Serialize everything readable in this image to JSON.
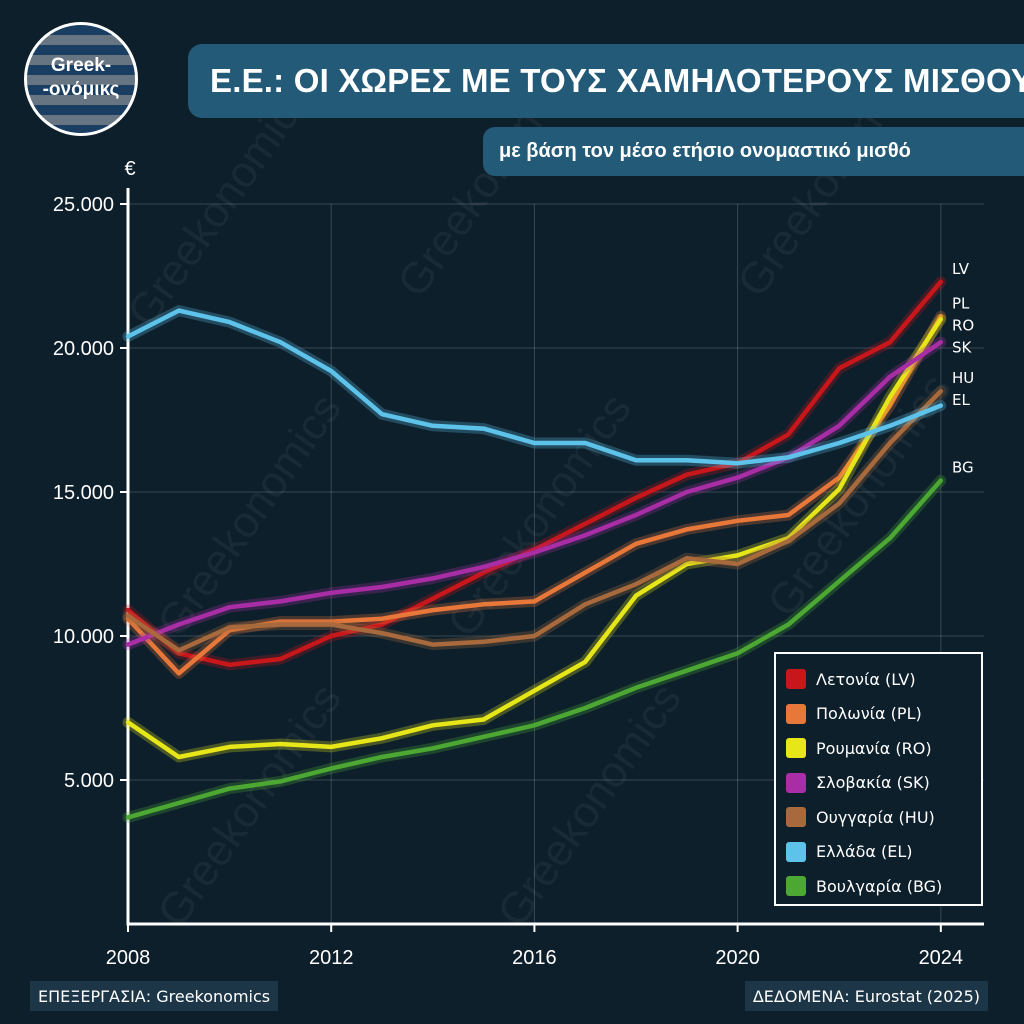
{
  "header": {
    "logo_line1": "Greek-",
    "logo_line2": "-ονόμικς",
    "title": "Ε.Ε.: ΟΙ ΧΩΡΕΣ ΜΕ ΤΟΥΣ ΧΑΜΗΛΟΤΕΡΟΥΣ ΜΙΣΘΟΥΣ",
    "subtitle": "με βάση τον μέσο ετήσιο ονομαστικό μισθό"
  },
  "footer": {
    "left": "ΕΠΕΞΕΡΓΑΣΙΑ: Greekonomics",
    "right": "ΔΕΔΟΜΕΝΑ: Eurostat (2025)"
  },
  "watermark": "Greekonomics",
  "chart_data": {
    "type": "line",
    "title": "Ε.Ε.: ΟΙ ΧΩΡΕΣ ΜΕ ΤΟΥΣ ΧΑΜΗΛΟΤΕΡΟΥΣ ΜΙΣΘΟΥΣ",
    "subtitle": "με βάση τον μέσο ετήσιο ονομαστικό μισθό",
    "ylabel": "€",
    "xlabel": "",
    "x": [
      2008,
      2009,
      2010,
      2011,
      2012,
      2013,
      2014,
      2015,
      2016,
      2017,
      2018,
      2019,
      2020,
      2021,
      2022,
      2023,
      2024
    ],
    "xticks": [
      2008,
      2012,
      2016,
      2020,
      2024
    ],
    "xtick_labels": [
      "2008",
      "2012",
      "2016",
      "2020",
      "2024"
    ],
    "xlim": [
      2008,
      2024.85
    ],
    "yticks": [
      5000,
      10000,
      15000,
      20000,
      25000
    ],
    "ytick_labels": [
      "5.000",
      "10.000",
      "15.000",
      "20.000",
      "25.000"
    ],
    "ylim": [
      0,
      25000
    ],
    "grid": true,
    "legend_position": "bottom-right",
    "series": [
      {
        "name": "Λετονία (LV)",
        "code": "LV",
        "color": "#c8171b",
        "values": [
          10900,
          9400,
          9000,
          9200,
          10000,
          10400,
          11300,
          12200,
          13000,
          13900,
          14800,
          15600,
          16000,
          17000,
          19300,
          20200,
          22300
        ]
      },
      {
        "name": "Πολωνία (PL)",
        "code": "PL",
        "color": "#e8773a",
        "values": [
          10600,
          8700,
          10200,
          10500,
          10500,
          10600,
          10900,
          11100,
          11200,
          12200,
          13200,
          13700,
          14000,
          14200,
          15500,
          18000,
          21100
        ]
      },
      {
        "name": "Ρουμανία (RO)",
        "code": "RO",
        "color": "#e6e619",
        "values": [
          7000,
          5800,
          6150,
          6250,
          6150,
          6450,
          6900,
          7100,
          8100,
          9100,
          11400,
          12500,
          12800,
          13400,
          15100,
          18300,
          21000
        ]
      },
      {
        "name": "Σλοβακία (SK)",
        "code": "SK",
        "color": "#a92ea6",
        "values": [
          9700,
          10400,
          11000,
          11200,
          11500,
          11700,
          12000,
          12400,
          12900,
          13500,
          14200,
          15000,
          15500,
          16200,
          17300,
          19000,
          20200
        ]
      },
      {
        "name": "Ουγγαρία (HU)",
        "code": "HU",
        "color": "#a86a3c",
        "values": [
          10700,
          9500,
          10300,
          10400,
          10400,
          10100,
          9700,
          9800,
          10000,
          11100,
          11800,
          12700,
          12500,
          13300,
          14600,
          16700,
          18500
        ]
      },
      {
        "name": "Ελλάδα (EL)",
        "code": "EL",
        "color": "#5ec3ea",
        "values": [
          20400,
          21300,
          20900,
          20200,
          19200,
          17700,
          17300,
          17200,
          16700,
          16700,
          16100,
          16100,
          16000,
          16200,
          16700,
          17300,
          18000
        ]
      },
      {
        "name": "Βουλγαρία (BG)",
        "code": "BG",
        "color": "#4ca832",
        "values": [
          3700,
          4200,
          4700,
          4950,
          5400,
          5800,
          6100,
          6500,
          6900,
          7500,
          8200,
          8800,
          9400,
          10400,
          11900,
          13400,
          15400
        ]
      }
    ]
  }
}
